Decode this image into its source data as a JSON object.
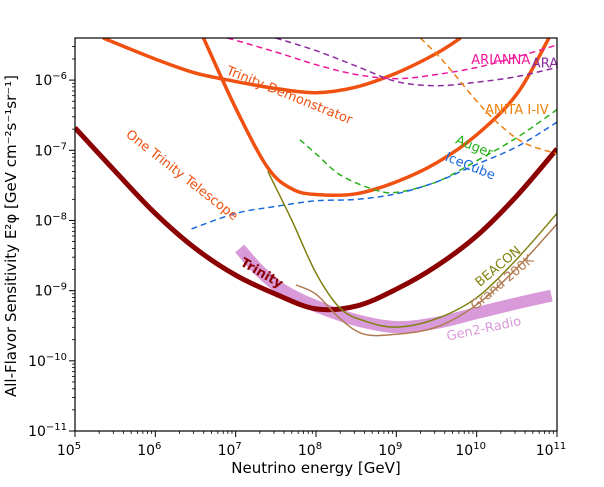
{
  "chart_data": {
    "type": "line",
    "title": "",
    "xlabel": "Neutrino energy [GeV]",
    "ylabel": "All-Flavor Sensitivity E²φ [GeV cm⁻²s⁻¹sr⁻¹]",
    "xscale": "log",
    "yscale": "log",
    "xlim_exp": [
      5,
      11
    ],
    "ylim_exp": [
      -11,
      -5.4
    ],
    "x_ticks": [
      {
        "exp": 5,
        "label_base": "10",
        "label_exp": "5"
      },
      {
        "exp": 6,
        "label_base": "10",
        "label_exp": "6"
      },
      {
        "exp": 7,
        "label_base": "10",
        "label_exp": "7"
      },
      {
        "exp": 8,
        "label_base": "10",
        "label_exp": "8"
      },
      {
        "exp": 9,
        "label_base": "10",
        "label_exp": "9"
      },
      {
        "exp": 10,
        "label_base": "10",
        "label_exp": "10"
      },
      {
        "exp": 11,
        "label_base": "10",
        "label_exp": "11"
      }
    ],
    "y_ticks": [
      {
        "exp": -11,
        "label_base": "10",
        "label_exp": "−11"
      },
      {
        "exp": -10,
        "label_base": "10",
        "label_exp": "−10"
      },
      {
        "exp": -9,
        "label_base": "10",
        "label_exp": "−9"
      },
      {
        "exp": -8,
        "label_base": "10",
        "label_exp": "−8"
      },
      {
        "exp": -7,
        "label_base": "10",
        "label_exp": "−7"
      },
      {
        "exp": -6,
        "label_base": "10",
        "label_exp": "−6"
      }
    ],
    "series": [
      {
        "name": "Trinity",
        "color": "#8B0000",
        "dash": "",
        "width": 5,
        "label_at": [
          7.3,
          -8.8
        ],
        "label_rotate": 30,
        "label_bold": true,
        "points": [
          [
            5,
            -6.68
          ],
          [
            5.5,
            -7.3
          ],
          [
            6,
            -7.9
          ],
          [
            6.5,
            -8.4
          ],
          [
            7,
            -8.78
          ],
          [
            7.5,
            -9.05
          ],
          [
            8,
            -9.26
          ],
          [
            8.5,
            -9.22
          ],
          [
            9,
            -8.98
          ],
          [
            9.5,
            -8.65
          ],
          [
            10,
            -8.22
          ],
          [
            10.5,
            -7.65
          ],
          [
            11,
            -6.98
          ]
        ]
      },
      {
        "name": "Trinity-Demonstrator",
        "color": "#F05010",
        "dash": "",
        "width": 3.5,
        "label_at": [
          7.65,
          -6.27
        ],
        "label_rotate": 22,
        "label_bold": false,
        "points": [
          [
            5.35,
            -5.4
          ],
          [
            6,
            -5.7
          ],
          [
            6.5,
            -5.9
          ],
          [
            7,
            -6.02
          ],
          [
            7.5,
            -6.12
          ],
          [
            8,
            -6.18
          ],
          [
            8.5,
            -6.1
          ],
          [
            9,
            -5.9
          ],
          [
            9.5,
            -5.62
          ],
          [
            9.8,
            -5.4
          ]
        ]
      },
      {
        "name": "One Trinity Telescope",
        "color": "#F05010",
        "dash": "",
        "width": 3.5,
        "label_at": [
          6.3,
          -7.4
        ],
        "label_rotate": 38,
        "label_bold": false,
        "points": [
          [
            6.6,
            -5.4
          ],
          [
            7,
            -6.4
          ],
          [
            7.4,
            -7.25
          ],
          [
            7.7,
            -7.55
          ],
          [
            8,
            -7.63
          ],
          [
            8.5,
            -7.62
          ],
          [
            9,
            -7.45
          ],
          [
            9.5,
            -7.18
          ],
          [
            10,
            -6.78
          ],
          [
            10.5,
            -6.2
          ],
          [
            10.9,
            -5.4
          ]
        ]
      },
      {
        "name": "ARIANNA",
        "color": "#F0189E",
        "dash": "6,4",
        "width": 1.5,
        "label_at": [
          10.3,
          -5.77
        ],
        "label_rotate": 0,
        "label_bold": false,
        "points": [
          [
            6.9,
            -5.4
          ],
          [
            7.5,
            -5.6
          ],
          [
            8,
            -5.78
          ],
          [
            8.5,
            -5.92
          ],
          [
            9,
            -5.98
          ],
          [
            9.5,
            -5.92
          ],
          [
            10,
            -5.82
          ],
          [
            10.5,
            -5.67
          ],
          [
            11,
            -5.5
          ]
        ]
      },
      {
        "name": "ARA",
        "color": "#8B2B9E",
        "dash": "6,4",
        "width": 1.5,
        "label_at": [
          10.85,
          -5.82
        ],
        "label_rotate": 0,
        "label_bold": false,
        "points": [
          [
            7.5,
            -5.4
          ],
          [
            8,
            -5.58
          ],
          [
            8.5,
            -5.8
          ],
          [
            9,
            -6.02
          ],
          [
            9.5,
            -6.08
          ],
          [
            10,
            -6.03
          ],
          [
            10.5,
            -5.95
          ],
          [
            11,
            -5.82
          ]
        ]
      },
      {
        "name": "ANITA I-IV",
        "color": "#F08010",
        "dash": "6,4",
        "width": 1.5,
        "label_at": [
          10.5,
          -6.48
        ],
        "label_rotate": 0,
        "label_bold": false,
        "points": [
          [
            9.3,
            -5.4
          ],
          [
            9.6,
            -5.75
          ],
          [
            10,
            -6.3
          ],
          [
            10.3,
            -6.65
          ],
          [
            10.6,
            -6.9
          ],
          [
            11,
            -7.05
          ]
        ]
      },
      {
        "name": "Auger",
        "color": "#2AAF1A",
        "dash": "6,4",
        "width": 1.5,
        "label_at": [
          9.95,
          -7.0
        ],
        "label_rotate": 22,
        "label_bold": false,
        "points": [
          [
            7.8,
            -6.85
          ],
          [
            8,
            -7.05
          ],
          [
            8.3,
            -7.35
          ],
          [
            8.7,
            -7.55
          ],
          [
            9,
            -7.6
          ],
          [
            9.5,
            -7.45
          ],
          [
            10,
            -7.15
          ],
          [
            10.5,
            -6.82
          ],
          [
            11,
            -6.42
          ]
        ]
      },
      {
        "name": "IceCube",
        "color": "#1A6ADE",
        "dash": "6,4",
        "width": 1.5,
        "label_at": [
          9.9,
          -7.28
        ],
        "label_rotate": 22,
        "label_bold": false,
        "points": [
          [
            6.45,
            -8.12
          ],
          [
            7,
            -7.9
          ],
          [
            7.5,
            -7.8
          ],
          [
            8,
            -7.72
          ],
          [
            8.5,
            -7.7
          ],
          [
            9,
            -7.62
          ],
          [
            9.5,
            -7.45
          ],
          [
            10,
            -7.2
          ],
          [
            10.5,
            -6.95
          ],
          [
            11,
            -6.6
          ]
        ]
      },
      {
        "name": "BEACON",
        "color": "#808010",
        "dash": "",
        "width": 1.5,
        "label_at": [
          10.3,
          -8.7
        ],
        "label_rotate": -40,
        "label_bold": false,
        "points": [
          [
            7.4,
            -7.3
          ],
          [
            7.7,
            -8.0
          ],
          [
            8,
            -8.75
          ],
          [
            8.3,
            -9.25
          ],
          [
            8.6,
            -9.43
          ],
          [
            9,
            -9.52
          ],
          [
            9.5,
            -9.4
          ],
          [
            10,
            -9.1
          ],
          [
            10.5,
            -8.55
          ],
          [
            11,
            -7.9
          ]
        ]
      },
      {
        "name": "Grand 200K",
        "color": "#B07A50",
        "dash": "",
        "width": 1.5,
        "label_at": [
          10.35,
          -8.93
        ],
        "label_rotate": -40,
        "label_bold": false,
        "points": [
          [
            7.75,
            -8.92
          ],
          [
            8,
            -9.05
          ],
          [
            8.3,
            -9.4
          ],
          [
            8.6,
            -9.62
          ],
          [
            9,
            -9.62
          ],
          [
            9.5,
            -9.52
          ],
          [
            10,
            -9.2
          ],
          [
            10.5,
            -8.68
          ],
          [
            11,
            -8.05
          ]
        ]
      },
      {
        "name": "Gen2-Radio",
        "color": "#D89AD8",
        "dash": "",
        "width": 12,
        "label_at": [
          10.1,
          -9.6
        ],
        "label_rotate": -12,
        "label_bold": false,
        "points": [
          [
            7.05,
            -8.4
          ],
          [
            7.3,
            -8.72
          ],
          [
            7.6,
            -9.0
          ],
          [
            8,
            -9.22
          ],
          [
            8.5,
            -9.42
          ],
          [
            9,
            -9.52
          ],
          [
            9.5,
            -9.46
          ],
          [
            10,
            -9.32
          ],
          [
            10.5,
            -9.18
          ],
          [
            10.93,
            -9.07
          ]
        ]
      }
    ]
  }
}
